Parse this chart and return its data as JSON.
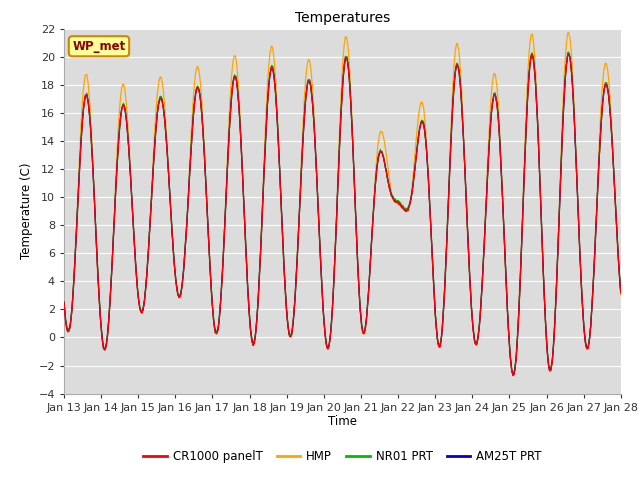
{
  "title": "Temperatures",
  "xlabel": "Time",
  "ylabel": "Temperature (C)",
  "ylim": [
    -4,
    22
  ],
  "yticks": [
    -4,
    -2,
    0,
    2,
    4,
    6,
    8,
    10,
    12,
    14,
    16,
    18,
    20,
    22
  ],
  "xtick_labels": [
    "Jan 13",
    "Jan 14",
    "Jan 15",
    "Jan 16",
    "Jan 17",
    "Jan 18",
    "Jan 19",
    "Jan 20",
    "Jan 21",
    "Jan 22",
    "Jan 23",
    "Jan 24",
    "Jan 25",
    "Jan 26",
    "Jan 27",
    "Jan 28"
  ],
  "colors": {
    "CR1000 panelT": "#ff0000",
    "HMP": "#ffa500",
    "NR01 PRT": "#00bb00",
    "AM25T PRT": "#0000cc"
  },
  "bg_color": "#dcdcdc",
  "annotation_text": "WP_met",
  "annotation_bg": "#ffff99",
  "annotation_border": "#cc8800",
  "annotation_text_color": "#880000"
}
